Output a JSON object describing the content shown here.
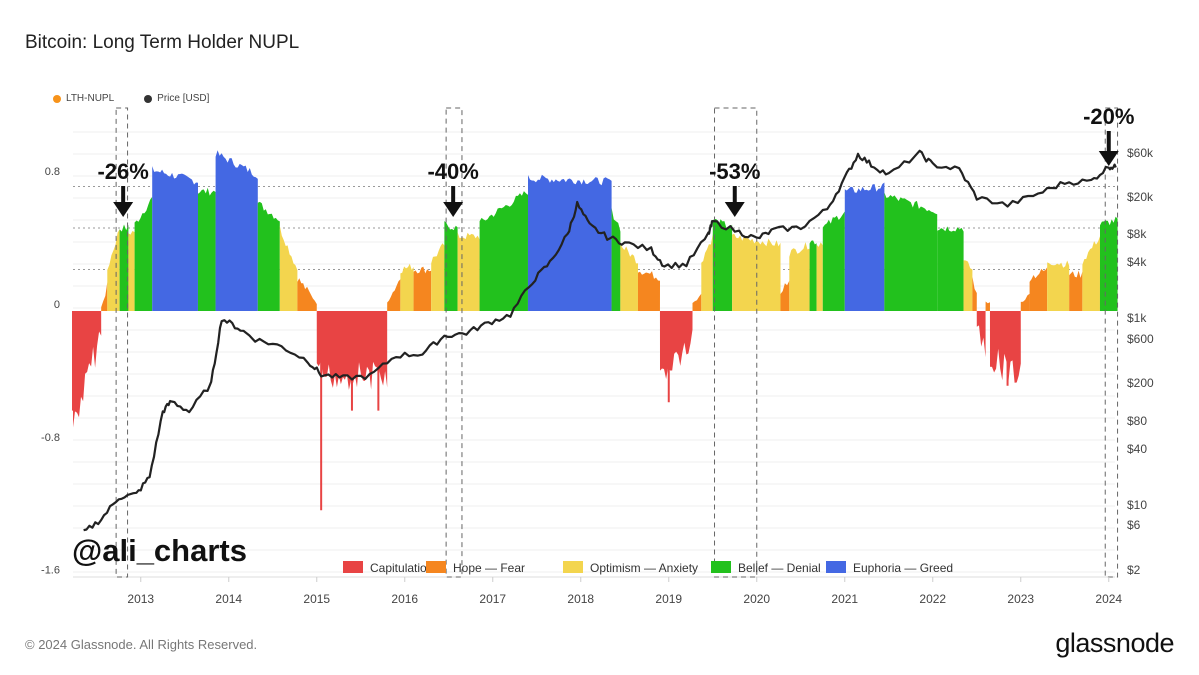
{
  "header": {
    "title": "Bitcoin: Long Term Holder NUPL"
  },
  "legend_top": [
    {
      "label": "LTH-NUPL",
      "color": "#f7931a"
    },
    {
      "label": "Price [USD]",
      "color": "#333333"
    }
  ],
  "watermark": "@ali_charts",
  "footer": {
    "copyright": "© 2024 Glassnode. All Rights Reserved.",
    "brand": "glassnode"
  },
  "colors": {
    "capitulation": "#e84444",
    "hope_fear": "#f5861f",
    "optimism_anxiety": "#f3d54e",
    "belief_denial": "#22c11d",
    "euphoria_greed": "#4468e3",
    "price_line": "#222222"
  },
  "chart_data": {
    "type": "area",
    "title": "Bitcoin: Long Term Holder NUPL",
    "xlabel": "",
    "ylabel_left": "LTH-NUPL",
    "ylabel_right": "Price [USD]",
    "xlim": [
      2012.23,
      2024.1
    ],
    "ylim_left": [
      -1.6,
      1.0
    ],
    "ylim_right_log": [
      2,
      100000
    ],
    "x_ticks": [
      "2013",
      "2014",
      "2015",
      "2016",
      "2017",
      "2018",
      "2019",
      "2020",
      "2021",
      "2022",
      "2023",
      "2024"
    ],
    "y_left_ticks": [
      "0.8",
      "0",
      "-0.8",
      "-1.6"
    ],
    "y_right_ticks": [
      "$60k",
      "$20k",
      "$8k",
      "$4k",
      "$1k",
      "$600",
      "$200",
      "$80",
      "$40",
      "$10",
      "$6",
      "$2"
    ],
    "legend": [
      {
        "name": "Capitulation",
        "key": "capitulation"
      },
      {
        "name": "Hope — Fear",
        "key": "hope_fear"
      },
      {
        "name": "Optimism — Anxiety",
        "key": "optimism_anxiety"
      },
      {
        "name": "Belief — Denial",
        "key": "belief_denial"
      },
      {
        "name": "Euphoria — Greed",
        "key": "euphoria_greed"
      }
    ],
    "nupl_segments": [
      {
        "from": 2012.23,
        "to": 2012.55,
        "zone": "capitulation",
        "start": -0.6,
        "end": -0.05
      },
      {
        "from": 2012.55,
        "to": 2012.62,
        "zone": "hope_fear",
        "start": 0.02,
        "end": 0.15
      },
      {
        "from": 2012.62,
        "to": 2012.76,
        "zone": "optimism_anxiety",
        "start": 0.25,
        "end": 0.5
      },
      {
        "from": 2012.76,
        "to": 2012.86,
        "zone": "belief_denial",
        "start": 0.5,
        "end": 0.5
      },
      {
        "from": 2012.86,
        "to": 2012.93,
        "zone": "optimism_anxiety",
        "start": 0.47,
        "end": 0.48
      },
      {
        "from": 2012.93,
        "to": 2013.13,
        "zone": "belief_denial",
        "start": 0.52,
        "end": 0.68
      },
      {
        "from": 2013.13,
        "to": 2013.65,
        "zone": "euphoria_greed",
        "start": 0.85,
        "end": 0.78
      },
      {
        "from": 2013.65,
        "to": 2013.85,
        "zone": "belief_denial",
        "start": 0.72,
        "end": 0.72
      },
      {
        "from": 2013.85,
        "to": 2014.33,
        "zone": "euphoria_greed",
        "start": 0.95,
        "end": 0.82
      },
      {
        "from": 2014.33,
        "to": 2014.58,
        "zone": "belief_denial",
        "start": 0.65,
        "end": 0.55
      },
      {
        "from": 2014.58,
        "to": 2014.78,
        "zone": "optimism_anxiety",
        "start": 0.5,
        "end": 0.25
      },
      {
        "from": 2014.78,
        "to": 2015.0,
        "zone": "hope_fear",
        "start": 0.2,
        "end": 0.05
      },
      {
        "from": 2015.0,
        "to": 2015.8,
        "zone": "capitulation",
        "start": -0.3,
        "end": -0.3
      },
      {
        "from": 2015.8,
        "to": 2015.95,
        "zone": "hope_fear",
        "start": 0.05,
        "end": 0.2
      },
      {
        "from": 2015.95,
        "to": 2016.1,
        "zone": "optimism_anxiety",
        "start": 0.25,
        "end": 0.27
      },
      {
        "from": 2016.1,
        "to": 2016.3,
        "zone": "hope_fear",
        "start": 0.25,
        "end": 0.25
      },
      {
        "from": 2016.3,
        "to": 2016.45,
        "zone": "optimism_anxiety",
        "start": 0.3,
        "end": 0.4
      },
      {
        "from": 2016.45,
        "to": 2016.6,
        "zone": "belief_denial",
        "start": 0.52,
        "end": 0.5
      },
      {
        "from": 2016.6,
        "to": 2016.85,
        "zone": "optimism_anxiety",
        "start": 0.45,
        "end": 0.45
      },
      {
        "from": 2016.85,
        "to": 2017.4,
        "zone": "belief_denial",
        "start": 0.53,
        "end": 0.72
      },
      {
        "from": 2017.4,
        "to": 2018.35,
        "zone": "euphoria_greed",
        "start": 0.8,
        "end": 0.78
      },
      {
        "from": 2018.35,
        "to": 2018.45,
        "zone": "belief_denial",
        "start": 0.6,
        "end": 0.5
      },
      {
        "from": 2018.45,
        "to": 2018.65,
        "zone": "optimism_anxiety",
        "start": 0.4,
        "end": 0.3
      },
      {
        "from": 2018.65,
        "to": 2018.9,
        "zone": "hope_fear",
        "start": 0.25,
        "end": 0.2
      },
      {
        "from": 2018.9,
        "to": 2019.27,
        "zone": "capitulation",
        "start": -0.3,
        "end": -0.1
      },
      {
        "from": 2019.27,
        "to": 2019.37,
        "zone": "hope_fear",
        "start": 0.05,
        "end": 0.1
      },
      {
        "from": 2019.37,
        "to": 2019.5,
        "zone": "optimism_anxiety",
        "start": 0.3,
        "end": 0.45
      },
      {
        "from": 2019.5,
        "to": 2019.72,
        "zone": "belief_denial",
        "start": 0.55,
        "end": 0.5
      },
      {
        "from": 2019.72,
        "to": 2020.27,
        "zone": "optimism_anxiety",
        "start": 0.45,
        "end": 0.4
      },
      {
        "from": 2020.27,
        "to": 2020.37,
        "zone": "hope_fear",
        "start": 0.1,
        "end": 0.2
      },
      {
        "from": 2020.37,
        "to": 2020.6,
        "zone": "optimism_anxiety",
        "start": 0.35,
        "end": 0.4
      },
      {
        "from": 2020.6,
        "to": 2020.68,
        "zone": "belief_denial",
        "start": 0.42,
        "end": 0.42
      },
      {
        "from": 2020.68,
        "to": 2020.75,
        "zone": "optimism_anxiety",
        "start": 0.4,
        "end": 0.42
      },
      {
        "from": 2020.75,
        "to": 2021.0,
        "zone": "belief_denial",
        "start": 0.5,
        "end": 0.6
      },
      {
        "from": 2021.0,
        "to": 2021.45,
        "zone": "euphoria_greed",
        "start": 0.72,
        "end": 0.75
      },
      {
        "from": 2021.45,
        "to": 2022.05,
        "zone": "belief_denial",
        "start": 0.7,
        "end": 0.6
      },
      {
        "from": 2022.05,
        "to": 2022.35,
        "zone": "belief_denial",
        "start": 0.5,
        "end": 0.5
      },
      {
        "from": 2022.35,
        "to": 2022.45,
        "zone": "optimism_anxiety",
        "start": 0.3,
        "end": 0.25
      },
      {
        "from": 2022.45,
        "to": 2022.5,
        "zone": "hope_fear",
        "start": 0.2,
        "end": 0.1
      },
      {
        "from": 2022.5,
        "to": 2022.6,
        "zone": "capitulation",
        "start": -0.05,
        "end": -0.15
      },
      {
        "from": 2022.6,
        "to": 2022.65,
        "zone": "hope_fear",
        "start": 0.05,
        "end": 0.05
      },
      {
        "from": 2022.65,
        "to": 2023.0,
        "zone": "capitulation",
        "start": -0.2,
        "end": -0.3
      },
      {
        "from": 2023.0,
        "to": 2023.1,
        "zone": "hope_fear",
        "start": 0.05,
        "end": 0.1
      },
      {
        "from": 2023.1,
        "to": 2023.3,
        "zone": "hope_fear",
        "start": 0.2,
        "end": 0.25
      },
      {
        "from": 2023.3,
        "to": 2023.55,
        "zone": "optimism_anxiety",
        "start": 0.3,
        "end": 0.28
      },
      {
        "from": 2023.55,
        "to": 2023.7,
        "zone": "hope_fear",
        "start": 0.22,
        "end": 0.22
      },
      {
        "from": 2023.7,
        "to": 2023.9,
        "zone": "optimism_anxiety",
        "start": 0.3,
        "end": 0.45
      },
      {
        "from": 2023.9,
        "to": 2024.1,
        "zone": "belief_denial",
        "start": 0.52,
        "end": 0.55
      }
    ],
    "capitulation_dips": [
      {
        "x": 2012.23,
        "y": -0.6
      },
      {
        "x": 2015.05,
        "y": -1.2
      },
      {
        "x": 2015.4,
        "y": -0.6
      },
      {
        "x": 2015.7,
        "y": -0.6
      },
      {
        "x": 2019.0,
        "y": -0.55
      },
      {
        "x": 2022.85,
        "y": -0.45
      }
    ],
    "price_series": {
      "x": [
        2012.35,
        2012.55,
        2012.75,
        2012.95,
        2013.1,
        2013.25,
        2013.35,
        2013.55,
        2013.8,
        2013.92,
        2014.1,
        2014.3,
        2014.6,
        2014.9,
        2015.05,
        2015.3,
        2015.6,
        2015.9,
        2016.2,
        2016.45,
        2016.7,
        2016.95,
        2017.2,
        2017.45,
        2017.65,
        2017.85,
        2017.96,
        2018.1,
        2018.3,
        2018.5,
        2018.8,
        2018.95,
        2019.2,
        2019.45,
        2019.5,
        2019.8,
        2020.0,
        2020.2,
        2020.5,
        2020.8,
        2021.0,
        2021.15,
        2021.3,
        2021.5,
        2021.85,
        2022.0,
        2022.3,
        2022.5,
        2022.85,
        2023.2,
        2023.5,
        2023.8,
        2024.0,
        2024.08
      ],
      "y": [
        5,
        7,
        12,
        13,
        20,
        100,
        130,
        100,
        200,
        1000,
        800,
        600,
        500,
        350,
        250,
        230,
        240,
        400,
        420,
        650,
        700,
        900,
        1100,
        2500,
        4000,
        8000,
        17000,
        10000,
        7500,
        6500,
        5500,
        3700,
        3800,
        8000,
        11000,
        8500,
        7200,
        9000,
        9500,
        15000,
        32000,
        58000,
        45000,
        35000,
        60000,
        45000,
        40000,
        20000,
        16500,
        22000,
        29000,
        30000,
        43000,
        42000
      ]
    },
    "annotations": [
      {
        "label": "-26%",
        "x": 2012.8
      },
      {
        "label": "-40%",
        "x": 2016.55
      },
      {
        "label": "-53%",
        "x": 2019.75
      },
      {
        "label": "-20%",
        "x": 2024.0
      }
    ],
    "highlight_windows": [
      {
        "from": 2012.72,
        "to": 2012.85
      },
      {
        "from": 2016.47,
        "to": 2016.65
      },
      {
        "from": 2019.52,
        "to": 2020.0
      },
      {
        "from": 2023.96,
        "to": 2024.1
      }
    ]
  }
}
